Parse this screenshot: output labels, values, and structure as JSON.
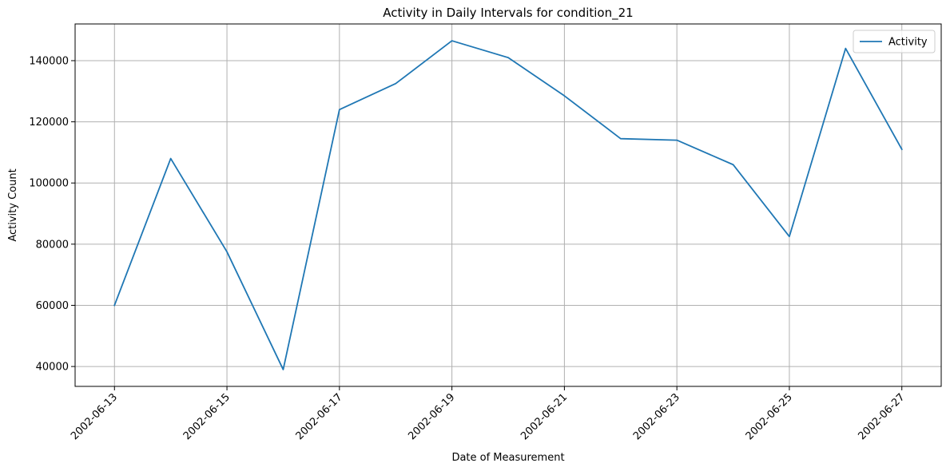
{
  "chart_data": {
    "type": "line",
    "title": "Activity in Daily Intervals for condition_21",
    "xlabel": "Date of Measurement",
    "ylabel": "Activity Count",
    "grid": true,
    "legend_position": "top-right",
    "x_ticks": [
      "2002-06-13",
      "2002-06-15",
      "2002-06-17",
      "2002-06-19",
      "2002-06-21",
      "2002-06-23",
      "2002-06-25",
      "2002-06-27"
    ],
    "y_ticks": [
      40000,
      60000,
      80000,
      100000,
      120000,
      140000
    ],
    "ylim": [
      33500,
      152000
    ],
    "xlim": [
      "2002-06-12 07:12",
      "2002-06-27 16:48"
    ],
    "series": [
      {
        "name": "Activity",
        "color": "#1f77b4",
        "x": [
          "2002-06-13",
          "2002-06-14",
          "2002-06-15",
          "2002-06-16",
          "2002-06-17",
          "2002-06-18",
          "2002-06-19",
          "2002-06-20",
          "2002-06-21",
          "2002-06-22",
          "2002-06-23",
          "2002-06-24",
          "2002-06-25",
          "2002-06-26",
          "2002-06-27"
        ],
        "values": [
          60000,
          108000,
          77500,
          39000,
          124000,
          132500,
          146500,
          141000,
          128500,
          114500,
          114000,
          106000,
          82500,
          144000,
          111000
        ]
      }
    ]
  }
}
